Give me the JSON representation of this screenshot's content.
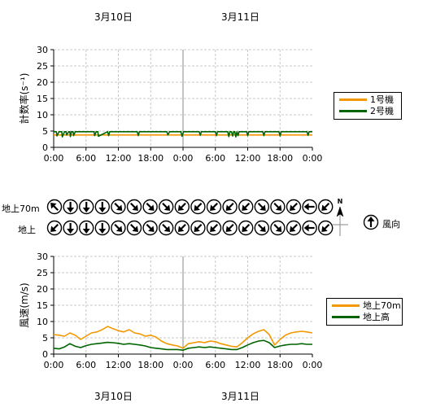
{
  "dates": {
    "top": [
      "3月10日",
      "3月11日"
    ],
    "bottom": [
      "3月10日",
      "3月11日"
    ]
  },
  "chart_data": [
    {
      "type": "line",
      "ylabel": "計数率(s⁻¹)",
      "ylim": [
        0,
        30
      ],
      "yticks": [
        "0",
        "5",
        "10",
        "15",
        "20",
        "25",
        "30"
      ],
      "xticks": [
        "0:00",
        "6:00",
        "12:00",
        "18:00",
        "0:00",
        "6:00",
        "12:00",
        "18:00",
        "0:00"
      ],
      "xlim_hours": [
        0,
        48
      ],
      "grid": true,
      "legend": "right",
      "series": [
        {
          "name": "1号機",
          "color": "#f39800",
          "x": [
            0,
            48
          ],
          "values": [
            3.8,
            3.8
          ]
        },
        {
          "name": "2号機",
          "color": "#006400",
          "x": [
            0,
            0.5,
            0.6,
            1,
            1.5,
            1.6,
            2,
            2.3,
            2.4,
            2.8,
            3.0,
            3.1,
            3.3,
            3.6,
            3.7,
            4,
            7.5,
            7.6,
            7.9,
            8.2,
            8.3,
            10,
            10.2,
            10.4,
            10.6,
            15.5,
            15.7,
            15.9,
            16.2,
            21,
            21.2,
            21.5,
            21.7,
            23.6,
            23.8,
            24.1,
            24.4,
            27,
            27.2,
            27.4,
            30,
            30.2,
            30.4,
            32.3,
            32.5,
            32.7,
            33,
            33.2,
            33.4,
            33.6,
            33.8,
            34.0,
            34.2,
            34.4,
            35.8,
            36,
            36.2,
            38.8,
            39,
            39.2,
            41.8,
            42,
            42.2,
            47,
            47.2,
            47.4,
            48
          ],
          "values": [
            4.8,
            4.8,
            3.5,
            4.8,
            4.8,
            3.2,
            4.8,
            4.8,
            3.8,
            4.8,
            4.8,
            3.3,
            4.8,
            4.8,
            3.6,
            4.8,
            4.8,
            3.6,
            4.8,
            4.8,
            3.4,
            4.8,
            3.6,
            4.8,
            4.8,
            4.8,
            3.6,
            4.8,
            4.8,
            4.8,
            3.8,
            4.8,
            4.8,
            4.8,
            3.4,
            4.8,
            4.8,
            4.8,
            3.7,
            4.8,
            4.8,
            3.6,
            4.8,
            4.8,
            3.3,
            4.8,
            4.8,
            3.5,
            4.8,
            4.8,
            3.2,
            4.8,
            3.6,
            4.8,
            4.8,
            3.6,
            4.8,
            4.8,
            3.6,
            4.8,
            4.8,
            3.5,
            4.8,
            4.8,
            3.7,
            4.8,
            4.8
          ]
        }
      ]
    },
    {
      "type": "line",
      "ylabel": "風速(m/s)",
      "ylim": [
        0,
        30
      ],
      "yticks": [
        "0",
        "5",
        "10",
        "15",
        "20",
        "25",
        "30"
      ],
      "xticks": [
        "0:00",
        "6:00",
        "12:00",
        "18:00",
        "0:00",
        "6:00",
        "12:00",
        "18:00",
        "0:00"
      ],
      "xlim_hours": [
        0,
        48
      ],
      "grid": true,
      "legend": "right",
      "series": [
        {
          "name": "地上70m",
          "color": "#f39800",
          "x": [
            0,
            1,
            2,
            3,
            4,
            5,
            6,
            7,
            8,
            9,
            10,
            11,
            12,
            13,
            14,
            15,
            16,
            17,
            18,
            19,
            20,
            21,
            22,
            23,
            24,
            25,
            26,
            27,
            28,
            29,
            30,
            31,
            32,
            33,
            34,
            35,
            36,
            37,
            38,
            39,
            40,
            41,
            42,
            43,
            44,
            45,
            46,
            47,
            48
          ],
          "values": [
            6,
            5.8,
            5.5,
            6.5,
            5.8,
            4.5,
            5.5,
            6.5,
            6.8,
            7.5,
            8.5,
            7.8,
            7.2,
            6.8,
            7.5,
            6.5,
            6.2,
            5.5,
            5.8,
            5.2,
            4.0,
            3.2,
            2.8,
            2.5,
            1.8,
            3.2,
            3.5,
            3.8,
            3.5,
            4.0,
            3.8,
            3.2,
            2.8,
            2.4,
            2.2,
            3.5,
            5.0,
            6.2,
            7.0,
            7.5,
            6.0,
            2.8,
            4.5,
            5.8,
            6.5,
            6.8,
            7.0,
            6.8,
            6.5
          ]
        },
        {
          "name": "地上高",
          "color": "#006400",
          "x": [
            0,
            1,
            2,
            3,
            4,
            5,
            6,
            7,
            8,
            9,
            10,
            11,
            12,
            13,
            14,
            15,
            16,
            17,
            18,
            19,
            20,
            21,
            22,
            23,
            24,
            25,
            26,
            27,
            28,
            29,
            30,
            31,
            32,
            33,
            34,
            35,
            36,
            37,
            38,
            39,
            40,
            41,
            42,
            43,
            44,
            45,
            46,
            47,
            48
          ],
          "values": [
            1.8,
            1.6,
            2.2,
            3.2,
            2.4,
            2.0,
            2.6,
            3.0,
            3.2,
            3.4,
            3.6,
            3.5,
            3.3,
            3.0,
            3.2,
            3.0,
            2.8,
            2.5,
            2.0,
            1.8,
            1.6,
            1.4,
            1.4,
            1.4,
            1.2,
            1.8,
            2.0,
            2.2,
            2.0,
            2.2,
            2.0,
            1.8,
            1.6,
            1.4,
            1.4,
            2.0,
            2.8,
            3.5,
            4.0,
            4.2,
            3.5,
            2.0,
            2.5,
            2.8,
            3.0,
            3.0,
            3.2,
            3.0,
            3.0
          ]
        }
      ]
    }
  ],
  "wind": {
    "row_labels": [
      "地上70m",
      "地上"
    ],
    "north_label": "N",
    "legend_label": "風向",
    "legend_direction_deg": 0,
    "rows": [
      [
        315,
        180,
        180,
        180,
        135,
        135,
        135,
        135,
        225,
        225,
        225,
        225,
        225,
        135,
        135,
        225,
        270,
        225
      ],
      [
        225,
        180,
        180,
        180,
        135,
        135,
        135,
        135,
        225,
        225,
        225,
        225,
        225,
        135,
        135,
        225,
        270,
        225
      ]
    ]
  }
}
